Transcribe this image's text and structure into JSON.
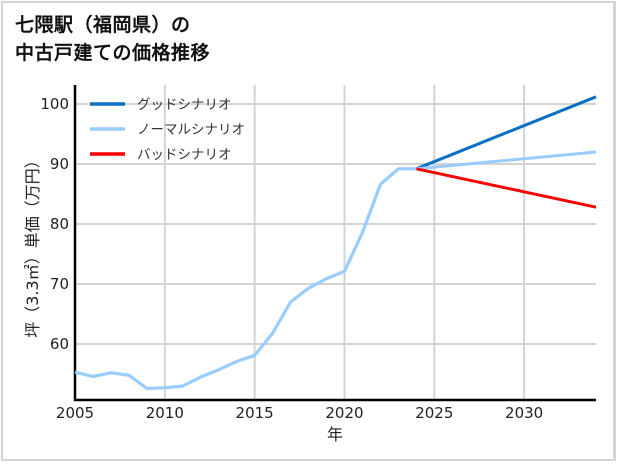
{
  "title": {
    "line1": "七隈駅（福岡県）の",
    "line2": "中古戸建ての価格推移"
  },
  "chart_data": {
    "type": "line",
    "title": "七隈駅（福岡県）の中古戸建ての価格推移",
    "xlabel": "年",
    "ylabel": "坪（3.3㎡）単価（万円）",
    "xlim": [
      2005,
      2034
    ],
    "ylim": [
      50.6,
      103
    ],
    "x_ticks": [
      "2005",
      "2010",
      "2015",
      "2020",
      "2025",
      "2030"
    ],
    "y_ticks": [
      "60",
      "70",
      "80",
      "90",
      "100"
    ],
    "grid": true,
    "legend_position": "upper left",
    "history": {
      "x": [
        2005,
        2006,
        2007,
        2008,
        2009,
        2010,
        2011,
        2012,
        2013,
        2014,
        2015,
        2016,
        2017,
        2018,
        2019,
        2020,
        2021,
        2022,
        2023,
        2024
      ],
      "values": [
        55.3,
        54.6,
        55.2,
        54.8,
        52.6,
        52.7,
        53.0,
        54.5,
        55.7,
        57.1,
        58.1,
        61.8,
        67.0,
        69.3,
        70.9,
        72.1,
        78.6,
        86.6,
        89.2,
        89.2
      ]
    },
    "series": [
      {
        "name": "グッドシナリオ",
        "color": "#0a6fc2",
        "x": [
          2024,
          2034
        ],
        "values": [
          89.2,
          101.2
        ]
      },
      {
        "name": "ノーマルシナリオ",
        "color": "#99ccff",
        "x": [
          2024,
          2034
        ],
        "values": [
          89.2,
          92.0
        ]
      },
      {
        "name": "バッドシナリオ",
        "color": "#ff0000",
        "x": [
          2024,
          2034
        ],
        "values": [
          89.2,
          82.8
        ]
      }
    ]
  }
}
